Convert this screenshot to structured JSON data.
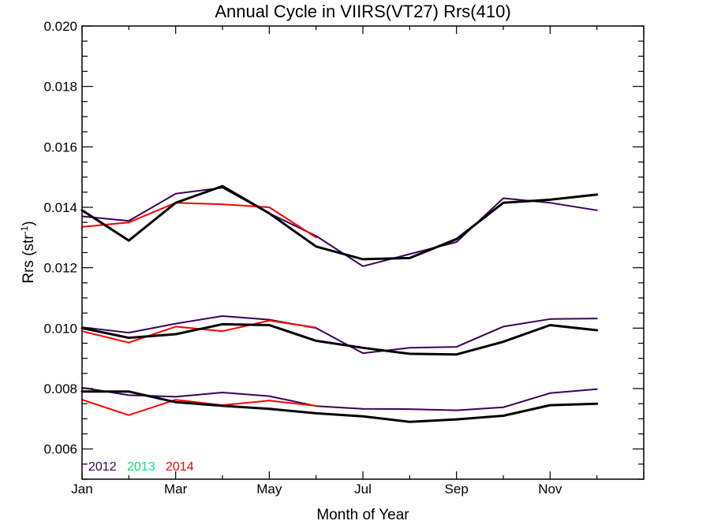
{
  "chart_data": {
    "type": "line",
    "title": "Annual Cycle in VIIRS(VT27) Rrs(410)",
    "xlabel": "Month of Year",
    "ylabel_main": "Rrs (str",
    "ylabel_sup": "-1",
    "ylabel_close": ")",
    "xlim": [
      1,
      13
    ],
    "ylim": [
      0.005,
      0.02
    ],
    "xticks": [
      {
        "value": 1,
        "label": "Jan"
      },
      {
        "value": 3,
        "label": "Mar"
      },
      {
        "value": 5,
        "label": "May"
      },
      {
        "value": 7,
        "label": "Jul"
      },
      {
        "value": 9,
        "label": "Sep"
      },
      {
        "value": 11,
        "label": "Nov"
      }
    ],
    "yticks": [
      {
        "value": 0.006,
        "label": "0.006"
      },
      {
        "value": 0.008,
        "label": "0.008"
      },
      {
        "value": 0.01,
        "label": "0.010"
      },
      {
        "value": 0.012,
        "label": "0.012"
      },
      {
        "value": 0.014,
        "label": "0.014"
      },
      {
        "value": 0.016,
        "label": "0.016"
      },
      {
        "value": 0.018,
        "label": "0.018"
      },
      {
        "value": 0.02,
        "label": "0.020"
      }
    ],
    "legend": [
      {
        "label": "2012",
        "color": "#3c0059"
      },
      {
        "label": "2013",
        "color": "#00e676"
      },
      {
        "label": "2014",
        "color": "#ff0000"
      }
    ],
    "legend_position": "bottom-left",
    "series": [
      {
        "group": "upper",
        "kind": "2012",
        "color": "#3c0059",
        "width": 2,
        "x": [
          1,
          2,
          3,
          4,
          5,
          6,
          7,
          8,
          9,
          10,
          11,
          12
        ],
        "y": [
          0.0137,
          0.01355,
          0.01445,
          0.01465,
          0.0138,
          0.01305,
          0.01205,
          0.01245,
          0.01285,
          0.0143,
          0.01415,
          0.0139
        ]
      },
      {
        "group": "upper",
        "kind": "2014",
        "color": "#ff0000",
        "width": 2,
        "x": [
          1,
          2,
          3,
          4,
          5,
          6
        ],
        "y": [
          0.01335,
          0.0135,
          0.01415,
          0.0141,
          0.014,
          0.013
        ]
      },
      {
        "group": "upper",
        "kind": "mean",
        "color": "#000000",
        "width": 3,
        "x": [
          1,
          2,
          3,
          4,
          5,
          6,
          7,
          8,
          9,
          10,
          11,
          12
        ],
        "y": [
          0.0139,
          0.0129,
          0.01415,
          0.0147,
          0.0138,
          0.0127,
          0.01228,
          0.01232,
          0.01295,
          0.01415,
          0.01425,
          0.01442
        ]
      },
      {
        "group": "middle",
        "kind": "2012",
        "color": "#3c0059",
        "width": 2,
        "x": [
          1,
          2,
          3,
          4,
          5,
          6,
          7,
          8,
          9,
          10,
          11,
          12
        ],
        "y": [
          0.01003,
          0.00985,
          0.01015,
          0.0104,
          0.01028,
          0.01,
          0.00917,
          0.00935,
          0.00938,
          0.01005,
          0.0103,
          0.01032
        ]
      },
      {
        "group": "middle",
        "kind": "2014",
        "color": "#ff0000",
        "width": 2,
        "x": [
          1,
          2,
          3,
          4,
          5,
          6
        ],
        "y": [
          0.0099,
          0.00952,
          0.01005,
          0.0099,
          0.01025,
          0.01002
        ]
      },
      {
        "group": "middle",
        "kind": "mean",
        "color": "#000000",
        "width": 3,
        "x": [
          1,
          2,
          3,
          4,
          5,
          6,
          7,
          8,
          9,
          10,
          11,
          12
        ],
        "y": [
          0.01,
          0.00968,
          0.0098,
          0.01013,
          0.0101,
          0.00958,
          0.00935,
          0.00915,
          0.00913,
          0.00955,
          0.0101,
          0.00993
        ]
      },
      {
        "group": "lower",
        "kind": "2012",
        "color": "#3c0059",
        "width": 2,
        "x": [
          1,
          2,
          3,
          4,
          5,
          6,
          7,
          8,
          9,
          10,
          11,
          12
        ],
        "y": [
          0.00803,
          0.00778,
          0.00773,
          0.00787,
          0.00775,
          0.00742,
          0.00733,
          0.00732,
          0.00728,
          0.00738,
          0.00785,
          0.00798
        ]
      },
      {
        "group": "lower",
        "kind": "2014",
        "color": "#ff0000",
        "width": 2,
        "x": [
          1,
          2,
          3,
          4,
          5,
          6
        ],
        "y": [
          0.00763,
          0.00712,
          0.00763,
          0.00745,
          0.0076,
          0.00743
        ]
      },
      {
        "group": "lower",
        "kind": "mean",
        "color": "#000000",
        "width": 3,
        "x": [
          1,
          2,
          3,
          4,
          5,
          6,
          7,
          8,
          9,
          10,
          11,
          12
        ],
        "y": [
          0.0079,
          0.0079,
          0.00755,
          0.00743,
          0.00733,
          0.00718,
          0.00708,
          0.0069,
          0.00698,
          0.0071,
          0.00745,
          0.0075
        ]
      }
    ]
  }
}
